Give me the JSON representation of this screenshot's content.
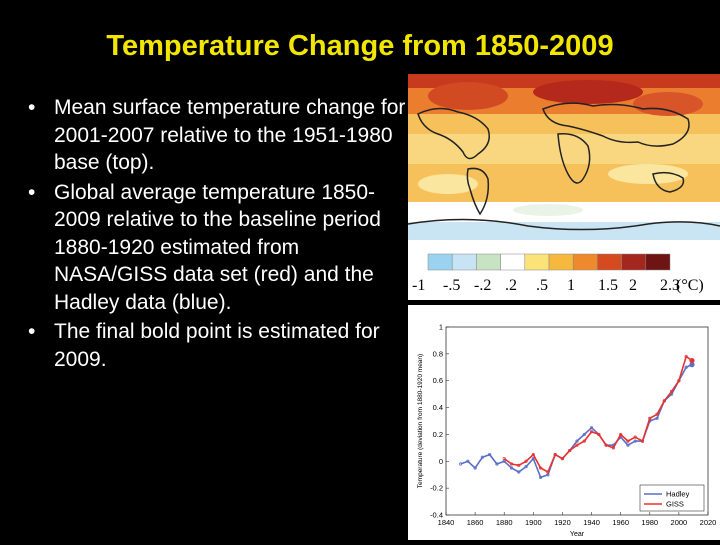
{
  "title": "Temperature Change from 1850-2009",
  "bullets": [
    "Mean surface temperature change for 2001-2007 relative to the 1951-1980 base (top).",
    "Global average temperature 1850-2009 relative to the baseline period 1880-1920 estimated from NASA/GISS data set (red) and the Hadley data (blue).",
    "The final bold point is estimated for 2009."
  ],
  "colors": {
    "title": "#f2e600",
    "text": "#ffffff",
    "background": "#000000",
    "giss": "#e8322e",
    "hadley": "#5a6fc8"
  },
  "map_scale": {
    "labels": [
      "-1",
      "-.5",
      "-.2",
      ".2",
      ".5",
      "1",
      "1.5",
      "2",
      "2.3"
    ],
    "unit": "(°C)",
    "colors": [
      "#9ad2f0",
      "#c6e4f4",
      "#c8e2c4",
      "#ffffff",
      "#fbe37a",
      "#f6b93e",
      "#ef8a2c",
      "#d64a20",
      "#a5261e",
      "#6e1412"
    ]
  },
  "chart_data": {
    "type": "line",
    "xlabel": "Year",
    "ylabel": "Temperature (deviation from 1880-1920 mean)",
    "xlim": [
      1840,
      2020
    ],
    "ylim": [
      -0.4,
      1.0
    ],
    "xticks": [
      "1840",
      "1860",
      "1880",
      "1900",
      "1920",
      "1940",
      "1960",
      "1980",
      "2000",
      "2020"
    ],
    "yticks": [
      "-0.4",
      "-0.2",
      "0",
      "0.2",
      "0.4",
      "0.6",
      "0.8",
      "1"
    ],
    "legend_position": "bottom-right",
    "series": [
      {
        "name": "Hadley",
        "color": "#5a6fc8",
        "x": [
          1850,
          1855,
          1860,
          1865,
          1870,
          1875,
          1880,
          1885,
          1890,
          1895,
          1900,
          1905,
          1910,
          1915,
          1920,
          1925,
          1930,
          1935,
          1940,
          1945,
          1950,
          1955,
          1960,
          1965,
          1970,
          1975,
          1980,
          1985,
          1990,
          1995,
          2000,
          2005,
          2009
        ],
        "values": [
          -0.02,
          0.0,
          -0.05,
          0.03,
          0.05,
          -0.02,
          0.0,
          -0.05,
          -0.08,
          -0.04,
          0.02,
          -0.12,
          -0.1,
          0.05,
          0.02,
          0.08,
          0.15,
          0.2,
          0.25,
          0.2,
          0.12,
          0.12,
          0.18,
          0.12,
          0.15,
          0.15,
          0.3,
          0.32,
          0.45,
          0.5,
          0.6,
          0.7,
          0.72
        ]
      },
      {
        "name": "GISS",
        "color": "#e8322e",
        "x": [
          1880,
          1885,
          1890,
          1895,
          1900,
          1905,
          1910,
          1915,
          1920,
          1925,
          1930,
          1935,
          1940,
          1945,
          1950,
          1955,
          1960,
          1965,
          1970,
          1975,
          1980,
          1985,
          1990,
          1995,
          2000,
          2005,
          2009
        ],
        "values": [
          0.02,
          -0.02,
          -0.03,
          0.0,
          0.05,
          -0.05,
          -0.08,
          0.05,
          0.02,
          0.08,
          0.12,
          0.15,
          0.22,
          0.2,
          0.12,
          0.1,
          0.2,
          0.15,
          0.18,
          0.15,
          0.32,
          0.35,
          0.45,
          0.52,
          0.6,
          0.78,
          0.75
        ]
      }
    ]
  }
}
